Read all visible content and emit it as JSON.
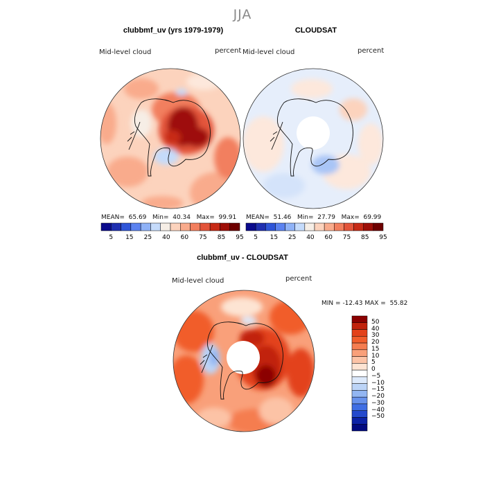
{
  "season": "JJA",
  "panels": [
    {
      "title": "clubbmf_uv (yrs 1979-1979)",
      "left_label": "Mid-level cloud",
      "right_label": "percent",
      "stats": {
        "mean_label": "MEAN=",
        "mean": "65.69",
        "min_label": "Min=",
        "min": "40.34",
        "max_label": "Max=",
        "max": "99.91"
      }
    },
    {
      "title": "CLOUDSAT",
      "left_label": "Mid-level cloud",
      "right_label": "percent",
      "stats": {
        "mean_label": "MEAN=",
        "mean": "51.46",
        "min_label": "Min=",
        "min": "27.79",
        "max_label": "Max=",
        "max": "69.99"
      }
    },
    {
      "title": "clubbmf_uv - CLOUDSAT",
      "left_label": "Mid-level cloud",
      "right_label": "percent",
      "stats": {
        "min_label": "MIN =",
        "min": "-12.43",
        "max_label": "MAX =",
        "max": "55.82"
      }
    }
  ],
  "colorbar_top": {
    "colors": [
      "#0a0a8c",
      "#1f2fb0",
      "#2f55d8",
      "#5b82f0",
      "#8fb2f7",
      "#c5dbfb",
      "#f6eee6",
      "#fcd3bd",
      "#f9ab8c",
      "#f27f5e",
      "#e3543a",
      "#c72a16",
      "#9e0f08",
      "#6e0000"
    ],
    "ticks": [
      "5",
      "15",
      "25",
      "40",
      "60",
      "75",
      "85",
      "95"
    ]
  },
  "colorbar_diff": {
    "colors": [
      "#8b0000",
      "#c1220c",
      "#e3421a",
      "#f15d2b",
      "#f57d50",
      "#f9a07a",
      "#fcc3a6",
      "#fde4d3",
      "#ffffff",
      "#dce9fb",
      "#bcd4f7",
      "#93b6f2",
      "#6892ec",
      "#3f6ee4",
      "#2449cc",
      "#0c22a6",
      "#020a80"
    ],
    "ticks": [
      "50",
      "40",
      "30",
      "20",
      "15",
      "10",
      "5",
      "0",
      "-5",
      "-10",
      "-15",
      "-20",
      "-30",
      "-40",
      "-50"
    ]
  }
}
